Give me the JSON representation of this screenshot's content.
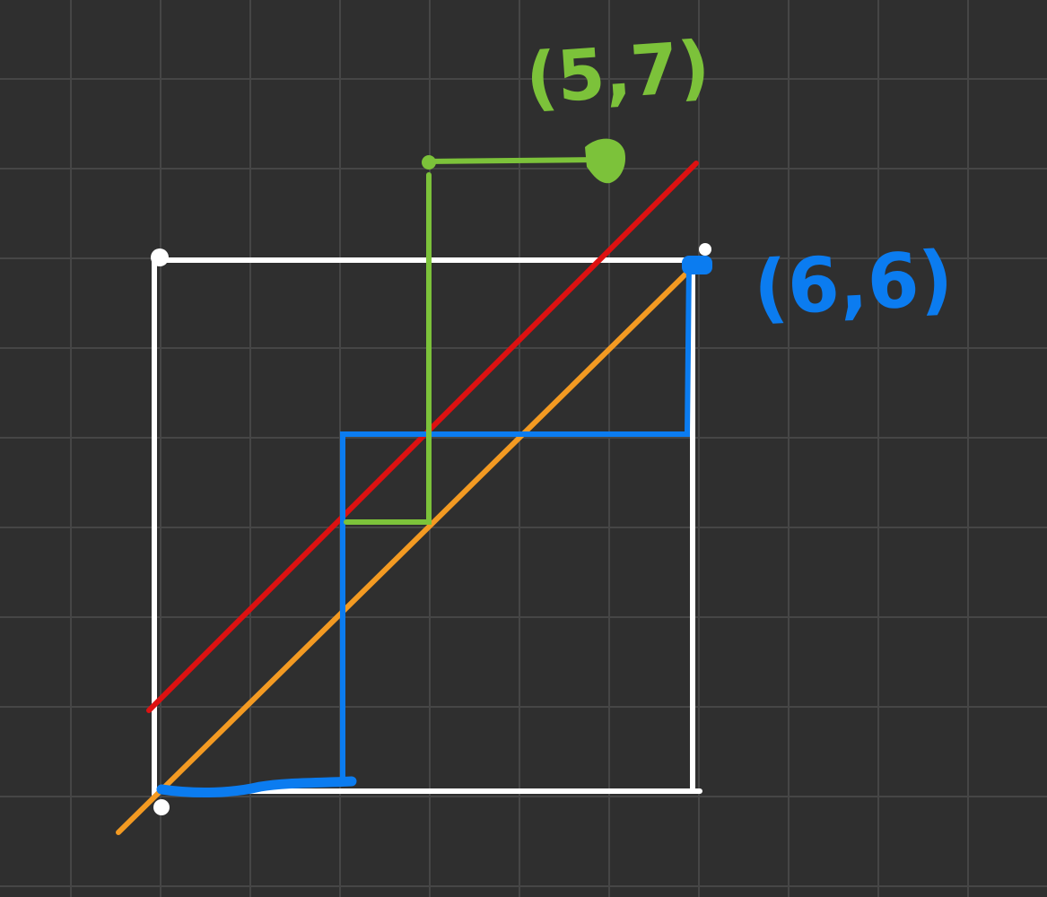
{
  "canvas": {
    "background": "#2f2f2f",
    "grid_color": "#464646"
  },
  "colors": {
    "square": "#ffffff",
    "red_line": "#dd1111",
    "orange_line": "#f39a22",
    "blue_path": "#0b7cf0",
    "green_path": "#7cc23a"
  },
  "labels": {
    "green_point": "(5,7)",
    "blue_point": "(6,6)"
  }
}
